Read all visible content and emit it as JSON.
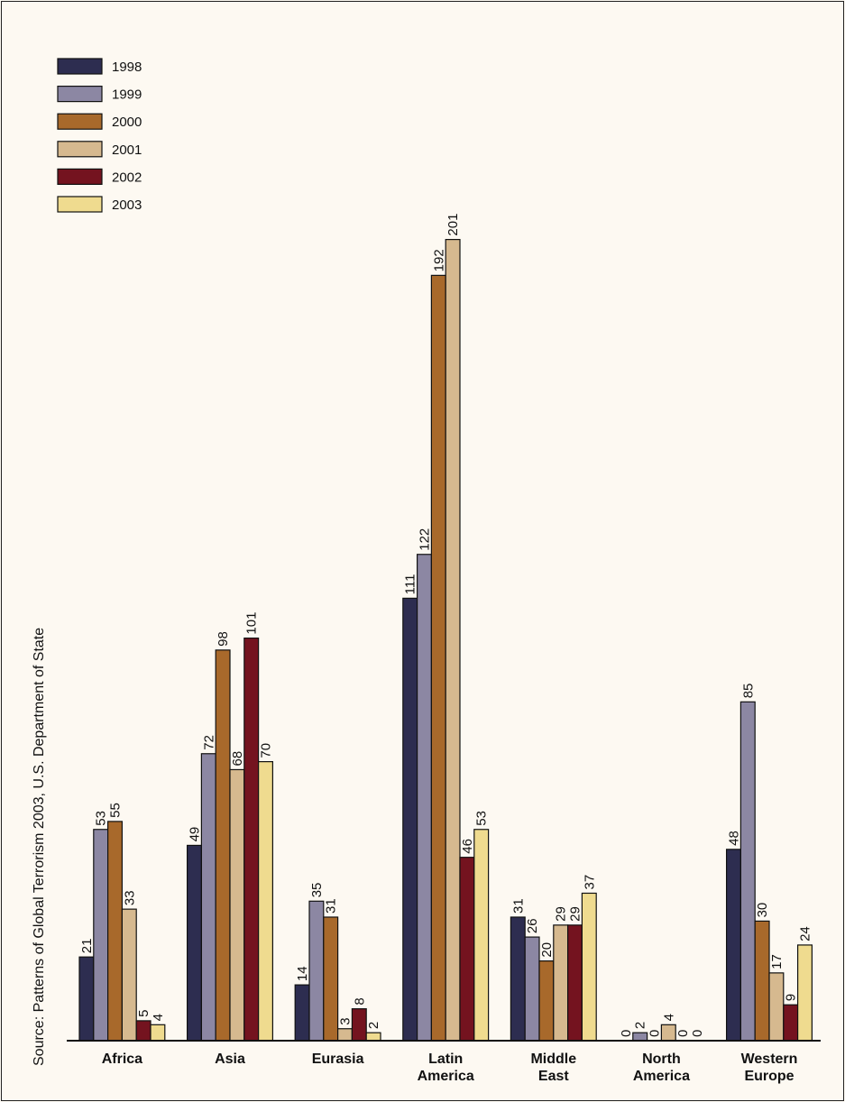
{
  "source_note": "Source: Patterns of Global Terrorism 2003, U.S. Department of State",
  "colors": {
    "1998": "#2d2d50",
    "1999": "#8c87a3",
    "2000": "#a8692b",
    "2001": "#d6b98f",
    "2002": "#74131f",
    "2003": "#efdb8f"
  },
  "chart_data": {
    "type": "bar",
    "title": "",
    "xlabel": "",
    "ylabel": "",
    "ylim": [
      0,
      201
    ],
    "grid": false,
    "legend_position": "top-left",
    "categories": [
      [
        "Africa"
      ],
      [
        "Asia"
      ],
      [
        "Eurasia"
      ],
      [
        "Latin",
        "America"
      ],
      [
        "Middle",
        "East"
      ],
      [
        "North",
        "America"
      ],
      [
        "Western",
        "Europe"
      ]
    ],
    "series": [
      {
        "name": "1998",
        "values": [
          21,
          49,
          14,
          111,
          31,
          0,
          48
        ]
      },
      {
        "name": "1999",
        "values": [
          53,
          72,
          35,
          122,
          26,
          2,
          85
        ]
      },
      {
        "name": "2000",
        "values": [
          55,
          98,
          31,
          192,
          20,
          0,
          30
        ]
      },
      {
        "name": "2001",
        "values": [
          33,
          68,
          3,
          201,
          29,
          4,
          17
        ]
      },
      {
        "name": "2002",
        "values": [
          5,
          101,
          8,
          46,
          29,
          0,
          9
        ]
      },
      {
        "name": "2003",
        "values": [
          4,
          70,
          2,
          53,
          37,
          0,
          24
        ]
      }
    ]
  }
}
